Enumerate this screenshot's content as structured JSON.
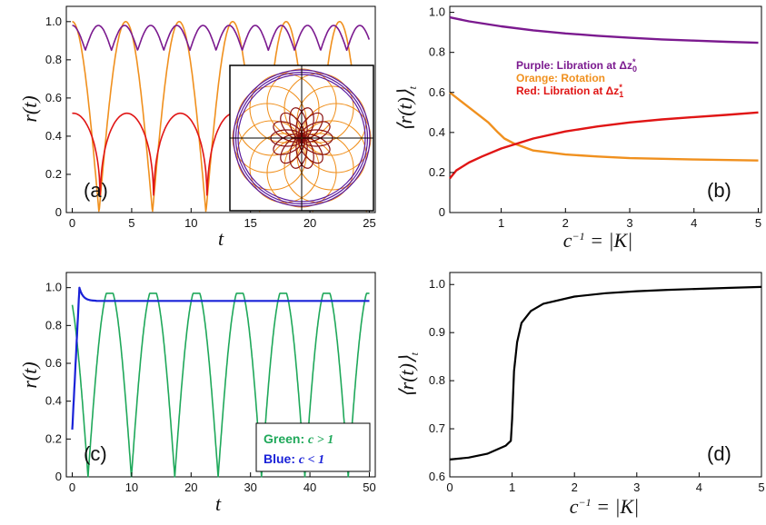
{
  "chart_data": [
    {
      "panel": "(a)",
      "type": "line",
      "xlabel": "t",
      "ylabel": "r(t)",
      "xlim": [
        -0.5,
        25.5
      ],
      "ylim": [
        0,
        1.08
      ],
      "xticks": [
        "0",
        "5",
        "10",
        "15",
        "20",
        "25"
      ],
      "yticks": [
        "0",
        "0.2",
        "0.4",
        "0.6",
        "0.8",
        "1.0"
      ],
      "series": [
        {
          "color": "#7b1a8f",
          "kind": "purple-libration",
          "min": 0.85,
          "max": 0.98,
          "period": 2.2
        },
        {
          "color": "#f0901e",
          "kind": "orange-rotation",
          "min": 0.0,
          "max": 1.0,
          "period": 4.5
        },
        {
          "color": "#e01515",
          "kind": "red-libration",
          "min": 0.0,
          "max": 0.52,
          "period": 4.5,
          "start": 0.3
        }
      ],
      "inset": {
        "colors": [
          "#f0901e",
          "#5a1a9e",
          "#8a1010"
        ]
      }
    },
    {
      "panel": "(b)",
      "type": "line",
      "xlabel": "c^{-1} = |K|",
      "ylabel": "⟨r(t)⟩_t",
      "xlim": [
        0.2,
        5.05
      ],
      "ylim": [
        0,
        1.03
      ],
      "xticks": [
        "1",
        "2",
        "3",
        "4",
        "5"
      ],
      "yticks": [
        "0",
        "0.2",
        "0.4",
        "0.6",
        "0.8",
        "1.0"
      ],
      "legend": [
        {
          "text": "Purple: Libration at ",
          "sym": "Δz",
          "sub": "0",
          "color": "#7b1a8f"
        },
        {
          "text": "Orange: Rotation",
          "color": "#f0901e"
        },
        {
          "text": "Red: Libration at ",
          "sym": "Δz",
          "sub": "1",
          "color": "#e01515"
        }
      ],
      "series": [
        {
          "color": "#7b1a8f",
          "x": [
            0.2,
            0.5,
            1,
            1.5,
            2,
            2.5,
            3,
            3.5,
            4,
            4.5,
            5
          ],
          "y": [
            0.975,
            0.955,
            0.93,
            0.91,
            0.895,
            0.883,
            0.873,
            0.865,
            0.859,
            0.853,
            0.848
          ]
        },
        {
          "color": "#f0901e",
          "x": [
            0.2,
            0.4,
            0.6,
            0.8,
            0.95,
            1.05,
            1.2,
            1.5,
            2,
            2.5,
            3,
            4,
            5
          ],
          "y": [
            0.6,
            0.55,
            0.5,
            0.45,
            0.4,
            0.37,
            0.345,
            0.31,
            0.29,
            0.28,
            0.272,
            0.265,
            0.26
          ]
        },
        {
          "color": "#e01515",
          "x": [
            0.2,
            0.3,
            0.5,
            0.7,
            1,
            1.5,
            2,
            2.5,
            3,
            3.5,
            4,
            4.5,
            5
          ],
          "y": [
            0.17,
            0.21,
            0.25,
            0.28,
            0.32,
            0.37,
            0.405,
            0.43,
            0.45,
            0.465,
            0.477,
            0.488,
            0.5
          ]
        }
      ]
    },
    {
      "panel": "(c)",
      "type": "line",
      "xlabel": "t",
      "ylabel": "r(t)",
      "xlim": [
        -1,
        51
      ],
      "ylim": [
        0,
        1.08
      ],
      "xticks": [
        "0",
        "10",
        "20",
        "30",
        "40",
        "50"
      ],
      "yticks": [
        "0",
        "0.2",
        "0.4",
        "0.6",
        "0.8",
        "1.0"
      ],
      "legend": [
        {
          "text": "Green: ",
          "math": "c > 1",
          "color": "#1fa85a"
        },
        {
          "text": "Blue: ",
          "math": "c < 1",
          "color": "#1a22d8"
        }
      ],
      "series": [
        {
          "color": "#1fa85a",
          "kind": "green-oscillation",
          "min": 0.0,
          "max": 1.0,
          "period": 7.3
        },
        {
          "color": "#1a22d8",
          "kind": "blue-relaxation",
          "start": 0.25,
          "peak": 1.0,
          "steady": 0.93
        }
      ]
    },
    {
      "panel": "(d)",
      "type": "line",
      "xlabel": "c^{-1} = |K|",
      "ylabel": "⟨r(t)⟩_t",
      "xlim": [
        0,
        5
      ],
      "ylim": [
        0.6,
        1.025
      ],
      "xticks": [
        "0",
        "1",
        "2",
        "3",
        "4",
        "5"
      ],
      "yticks": [
        "0.6",
        "0.7",
        "0.8",
        "0.9",
        "1.0"
      ],
      "series": [
        {
          "color": "#000000",
          "x": [
            0,
            0.3,
            0.6,
            0.9,
            0.98,
            1.0,
            1.03,
            1.08,
            1.15,
            1.3,
            1.5,
            2,
            2.5,
            3,
            3.5,
            4,
            4.5,
            5
          ],
          "y": [
            0.636,
            0.64,
            0.648,
            0.665,
            0.675,
            0.72,
            0.82,
            0.88,
            0.92,
            0.945,
            0.96,
            0.975,
            0.982,
            0.986,
            0.989,
            0.991,
            0.993,
            0.995
          ]
        }
      ]
    }
  ]
}
